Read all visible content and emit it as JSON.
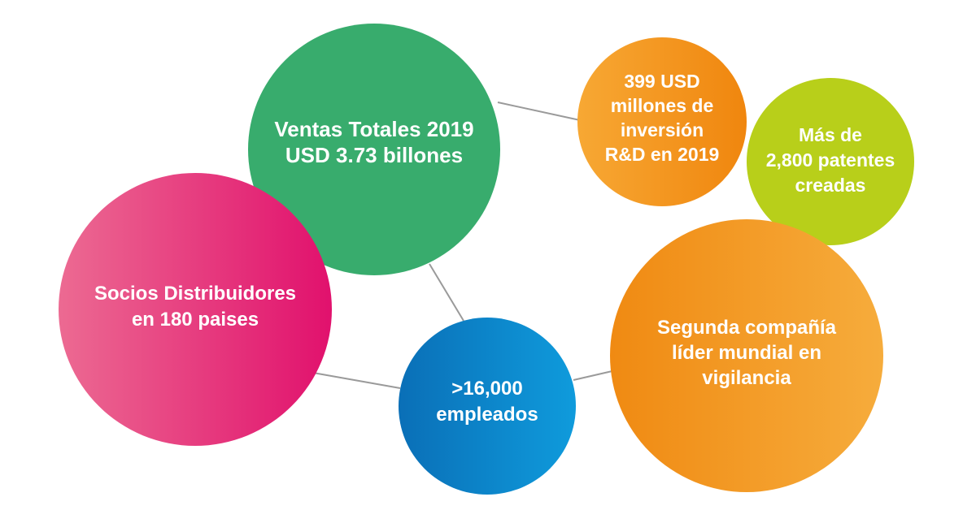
{
  "bubbles": {
    "sales": {
      "text": "Ventas Totales 2019\nUSD 3.73 billones",
      "color": "#38ac6d"
    },
    "partners": {
      "text": "Socios Distribuidores\nen 180 paises",
      "color": "#e1116d"
    },
    "employees": {
      "text": ">16,000\nempleados",
      "color": "#0f8fd3"
    },
    "rnd": {
      "text": "399 USD\nmillones de\ninversión\nR&D en 2019",
      "color": "#f39a20"
    },
    "patents": {
      "text": "Más de\n2,800 patentes\ncreadas",
      "color": "#b8cf1a"
    },
    "surveillance": {
      "text": "Segunda compañía\nlíder mundial en\nvigilancia",
      "color": "#f39a20"
    }
  },
  "connector_color": "#9a9a9a"
}
